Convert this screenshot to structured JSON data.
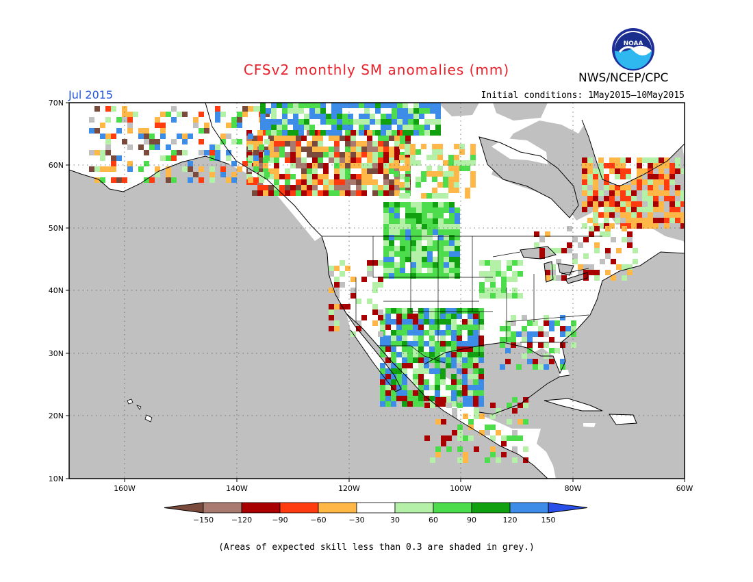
{
  "title": "CFSv2 monthly SM anomalies (mm)",
  "month": "Jul 2015",
  "initial_conditions": "Initial conditions: 1May2015—10May2015",
  "agency": "NWS/NCEP/CPC",
  "logo_text": "NOAA",
  "footnote": "(Areas of expected skill less than 0.3 are shaded in grey.)",
  "lat_labels": [
    "70N",
    "60N",
    "50N",
    "40N",
    "30N",
    "20N",
    "10N"
  ],
  "lon_labels": [
    "160W",
    "140W",
    "120W",
    "100W",
    "80W",
    "60W"
  ],
  "colorbar": {
    "labels": [
      "−150",
      "−120",
      "−90",
      "−60",
      "−30",
      "30",
      "60",
      "90",
      "120",
      "150"
    ],
    "colors": [
      "#7a4a3c",
      "#a87a70",
      "#a80000",
      "#ff3c10",
      "#ffb848",
      "#ffffff",
      "#b4f0a8",
      "#4cdc4c",
      "#10a010",
      "#3c8ce8",
      "#2850e8"
    ]
  },
  "colors": {
    "land": "#ffffff",
    "ocean": "#c0c0c0",
    "skill_grey": "#c0c0c0"
  }
}
